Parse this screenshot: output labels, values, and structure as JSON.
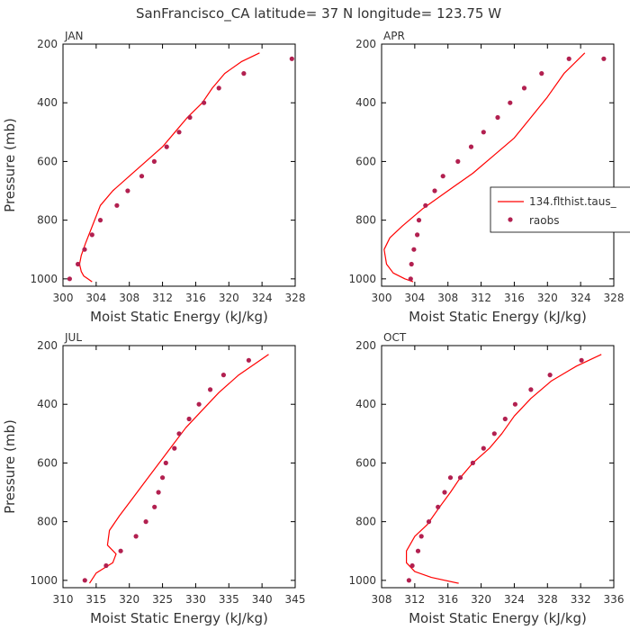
{
  "title": "SanFrancisco_CA  latitude= 37 N longitude= 123.75 W",
  "colors": {
    "model_line": "#ff0000",
    "raobs_points": "#b22050",
    "axes": "#000000",
    "text": "#333333"
  },
  "legend": {
    "placement": "right-middle of APR panel",
    "model_label": "134.flthist.taus_",
    "obs_label": "raobs"
  },
  "chart_data": [
    {
      "type": "line",
      "panel": "JAN",
      "label": "JAN",
      "xlabel": "Moist Static Energy (kJ/kg)",
      "ylabel": "Pressure (mb)",
      "xlim": [
        300,
        328
      ],
      "ylim": [
        1025,
        200
      ],
      "xticks": [
        300,
        304,
        308,
        312,
        316,
        320,
        324,
        328
      ],
      "yticks": [
        200,
        400,
        600,
        800,
        1000
      ],
      "series": [
        {
          "kind": "line",
          "x": [
            303.5,
            303.0,
            302.5,
            302.2,
            302.0,
            302.2,
            302.7,
            303.4,
            304.5,
            306.0,
            308.0,
            310.0,
            312.0,
            313.5,
            315.0,
            316.8,
            318.0,
            319.5,
            321.5,
            323.7
          ],
          "y": [
            1010,
            1000,
            990,
            975,
            950,
            920,
            880,
            830,
            750,
            700,
            650,
            600,
            550,
            500,
            450,
            400,
            350,
            300,
            260,
            230
          ]
        },
        {
          "kind": "scatter",
          "x": [
            300.8,
            301.8,
            302.6,
            303.5,
            304.5,
            306.5,
            307.8,
            309.5,
            311.0,
            312.5,
            314.0,
            315.3,
            317.0,
            318.8,
            321.8,
            327.6
          ],
          "y": [
            1000,
            950,
            900,
            850,
            800,
            750,
            700,
            650,
            600,
            550,
            500,
            450,
            400,
            350,
            300,
            250
          ]
        }
      ]
    },
    {
      "type": "line",
      "panel": "APR",
      "label": "APR",
      "xlabel": "Moist Static Energy (kJ/kg)",
      "ylabel": "",
      "xlim": [
        300,
        328
      ],
      "ylim": [
        1025,
        200
      ],
      "xticks": [
        300,
        304,
        308,
        312,
        316,
        320,
        324,
        328
      ],
      "yticks": [
        200,
        400,
        600,
        800,
        1000
      ],
      "series": [
        {
          "kind": "line",
          "x": [
            303.8,
            302.8,
            301.4,
            300.6,
            300.3,
            301.0,
            302.5,
            305.0,
            308.0,
            311.0,
            313.5,
            316.0,
            318.0,
            320.0,
            322.0,
            324.5
          ],
          "y": [
            1010,
            1000,
            980,
            950,
            900,
            860,
            820,
            760,
            700,
            640,
            580,
            520,
            450,
            380,
            300,
            230
          ]
        },
        {
          "kind": "scatter",
          "x": [
            303.5,
            303.6,
            303.9,
            304.3,
            304.5,
            305.3,
            306.4,
            307.4,
            309.2,
            310.8,
            312.3,
            314.0,
            315.5,
            317.2,
            319.3,
            322.6,
            326.8
          ],
          "y": [
            1000,
            950,
            900,
            850,
            800,
            750,
            700,
            650,
            600,
            550,
            500,
            450,
            400,
            350,
            300,
            250,
            250
          ]
        }
      ]
    },
    {
      "type": "line",
      "panel": "JUL",
      "label": "JUL",
      "xlabel": "Moist Static Energy (kJ/kg)",
      "ylabel": "Pressure (mb)",
      "xlim": [
        310,
        345
      ],
      "ylim": [
        1025,
        200
      ],
      "xticks": [
        310,
        315,
        320,
        325,
        330,
        335,
        340,
        345
      ],
      "yticks": [
        200,
        400,
        600,
        800,
        1000
      ],
      "series": [
        {
          "kind": "line",
          "x": [
            314.0,
            315.0,
            317.5,
            318.0,
            316.7,
            317.0,
            318.5,
            320.5,
            322.5,
            324.5,
            326.5,
            328.5,
            331.0,
            333.5,
            336.5,
            341.0
          ],
          "y": [
            1010,
            975,
            940,
            910,
            880,
            830,
            780,
            720,
            660,
            600,
            540,
            480,
            420,
            360,
            300,
            230
          ]
        },
        {
          "kind": "scatter",
          "x": [
            313.3,
            316.5,
            318.7,
            321.0,
            322.5,
            323.8,
            324.4,
            325.0,
            325.5,
            326.8,
            327.5,
            329.0,
            330.5,
            332.2,
            334.2,
            338.0
          ],
          "y": [
            1000,
            950,
            900,
            850,
            800,
            750,
            700,
            650,
            600,
            550,
            500,
            450,
            400,
            350,
            300,
            250
          ]
        }
      ]
    },
    {
      "type": "line",
      "panel": "OCT",
      "label": "OCT",
      "xlabel": "Moist Static Energy (kJ/kg)",
      "ylabel": "",
      "xlim": [
        308,
        336
      ],
      "ylim": [
        1025,
        200
      ],
      "xticks": [
        308,
        312,
        316,
        320,
        324,
        328,
        332,
        336
      ],
      "yticks": [
        200,
        400,
        600,
        800,
        1000
      ],
      "series": [
        {
          "kind": "line",
          "x": [
            317.3,
            314.0,
            312.0,
            311.0,
            311.0,
            312.0,
            313.5,
            315.0,
            316.3,
            317.5,
            319.0,
            321.0,
            322.5,
            324.0,
            326.0,
            328.5,
            331.5,
            334.5
          ],
          "y": [
            1010,
            990,
            970,
            940,
            900,
            850,
            810,
            750,
            700,
            650,
            600,
            550,
            500,
            440,
            380,
            320,
            270,
            230
          ]
        },
        {
          "kind": "scatter",
          "x": [
            311.3,
            311.7,
            312.4,
            312.8,
            313.7,
            314.8,
            315.6,
            316.3,
            317.5,
            319.0,
            320.3,
            321.6,
            322.9,
            324.1,
            326.0,
            328.3,
            332.1
          ],
          "y": [
            1000,
            950,
            900,
            850,
            800,
            750,
            700,
            650,
            650,
            600,
            550,
            500,
            450,
            400,
            350,
            300,
            250
          ]
        }
      ]
    }
  ]
}
